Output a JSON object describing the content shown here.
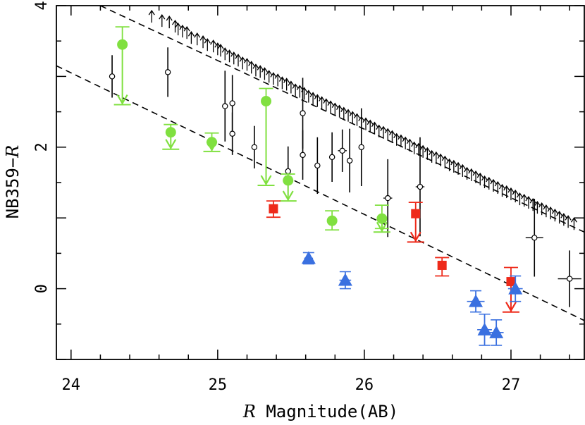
{
  "chart_data": {
    "type": "scatter",
    "title": "",
    "xlabel_italic": "R",
    "xlabel_rest": " Magnitude(AB)",
    "ylabel_prefix": "NB359−",
    "ylabel_italic": "R",
    "xlim": [
      23.9,
      27.5
    ],
    "ylim": [
      -1.0,
      4.0
    ],
    "xticks": [
      24,
      25,
      26,
      27
    ],
    "xtick_labels": [
      "24",
      "25",
      "26",
      "27"
    ],
    "yticks": [
      0,
      2,
      4
    ],
    "ytick_labels": [
      "0",
      "2",
      "4"
    ],
    "colors": {
      "black": "#000000",
      "green": "#80e040",
      "red": "#ee2a1a",
      "blue": "#3a70e0"
    },
    "limit_lines": [
      {
        "name": "upper-dashed-line",
        "x": [
          24.2,
          27.5
        ],
        "y": [
          4.0,
          0.8
        ]
      },
      {
        "name": "lower-dashed-line",
        "x": [
          23.9,
          27.5
        ],
        "y": [
          3.15,
          -0.45
        ]
      }
    ],
    "lower_limits": {
      "name": "lower limits (arrows)",
      "x": [
        24.55,
        24.62,
        24.67,
        24.71,
        24.73,
        24.76,
        24.79,
        24.82,
        24.86,
        24.9,
        24.93,
        24.97,
        25.0,
        25.02,
        25.05,
        25.08,
        25.11,
        25.14,
        25.17,
        25.2,
        25.23,
        25.26,
        25.29,
        25.32,
        25.35,
        25.38,
        25.41,
        25.44,
        25.47,
        25.5,
        25.53,
        25.56,
        25.59,
        25.62,
        25.65,
        25.68,
        25.71,
        25.74,
        25.77,
        25.8,
        25.83,
        25.86,
        25.89,
        25.92,
        25.95,
        25.98,
        26.01,
        26.04,
        26.07,
        26.1,
        26.13,
        26.16,
        26.19,
        26.22,
        26.25,
        26.28,
        26.31,
        26.34,
        26.37,
        26.4,
        26.43,
        26.46,
        26.49,
        26.52,
        26.55,
        26.58,
        26.61,
        26.64,
        26.67,
        26.7,
        26.73,
        26.76,
        26.79,
        26.82,
        26.85,
        26.88,
        26.91,
        26.94,
        26.97,
        27.0,
        27.03,
        27.06,
        27.09,
        27.12,
        27.15,
        27.18,
        27.21,
        27.24,
        27.27,
        27.3,
        27.33,
        27.36,
        27.39,
        27.43
      ],
      "y": [
        3.78,
        3.72,
        3.7,
        3.64,
        3.6,
        3.57,
        3.55,
        3.48,
        3.46,
        3.42,
        3.38,
        3.36,
        3.32,
        3.3,
        3.25,
        3.22,
        3.19,
        3.16,
        3.12,
        3.1,
        3.06,
        3.02,
        3.0,
        2.97,
        2.93,
        2.9,
        2.88,
        2.84,
        2.82,
        2.78,
        2.74,
        2.72,
        2.69,
        2.65,
        2.62,
        2.59,
        2.56,
        2.53,
        2.5,
        2.47,
        2.44,
        2.41,
        2.38,
        2.35,
        2.32,
        2.28,
        2.26,
        2.23,
        2.2,
        2.16,
        2.14,
        2.11,
        2.08,
        2.04,
        2.02,
        1.99,
        1.96,
        1.92,
        1.9,
        1.87,
        1.84,
        1.8,
        1.78,
        1.75,
        1.72,
        1.68,
        1.66,
        1.63,
        1.6,
        1.56,
        1.54,
        1.51,
        1.48,
        1.44,
        1.42,
        1.39,
        1.36,
        1.32,
        1.3,
        1.27,
        1.24,
        1.2,
        1.18,
        1.15,
        1.12,
        1.08,
        1.06,
        1.03,
        1.0,
        0.97,
        0.94,
        0.91,
        0.88,
        0.85
      ]
    },
    "black_points": {
      "name": "NB359 detections",
      "x": [
        24.28,
        24.66,
        25.05,
        25.1,
        25.1,
        25.25,
        25.48,
        25.58,
        25.58,
        25.68,
        25.78,
        25.85,
        25.9,
        25.98,
        26.16,
        26.38,
        27.16,
        27.4
      ],
      "y": [
        3.0,
        3.06,
        2.58,
        2.62,
        2.19,
        2.0,
        1.66,
        1.89,
        2.48,
        1.74,
        1.86,
        1.95,
        1.81,
        2.0,
        1.28,
        1.44,
        0.72,
        0.14
      ],
      "yerr": [
        0.3,
        0.35,
        0.5,
        0.4,
        0.3,
        0.3,
        0.35,
        0.35,
        0.5,
        0.4,
        0.35,
        0.3,
        0.45,
        0.55,
        0.55,
        0.7,
        0.55,
        0.4
      ],
      "xerr": [
        0.01,
        0.01,
        0.01,
        0.01,
        0.01,
        0.01,
        0.01,
        0.02,
        0.01,
        0.02,
        0.02,
        0.03,
        0.02,
        0.02,
        0.03,
        0.03,
        0.06,
        0.08
      ]
    },
    "green_points": {
      "name": "green circles",
      "x": [
        24.35,
        24.68,
        24.96,
        25.33,
        25.48,
        25.78,
        26.12
      ],
      "y": [
        3.45,
        2.21,
        2.07,
        2.65,
        1.53,
        0.96,
        0.99
      ],
      "limit_to": [
        2.6,
        1.97,
        1.94,
        1.46,
        1.24,
        null,
        0.8
      ],
      "err_top": [
        3.7,
        2.32,
        2.2,
        2.83,
        1.62,
        1.1,
        1.18
      ],
      "err_bottom": [
        null,
        null,
        null,
        null,
        null,
        0.83,
        0.85
      ]
    },
    "red_points": {
      "name": "red squares",
      "x": [
        25.38,
        26.35,
        26.53,
        27.0
      ],
      "y": [
        1.13,
        1.06,
        0.33,
        0.1
      ],
      "limit_to": [
        null,
        0.66,
        null,
        -0.33
      ],
      "err_top": [
        1.24,
        1.22,
        0.44,
        0.3
      ],
      "err_bottom": [
        1.01,
        null,
        0.18,
        null
      ]
    },
    "blue_points": {
      "name": "blue triangles",
      "x": [
        25.62,
        25.87,
        26.76,
        26.82,
        26.9,
        27.03
      ],
      "y": [
        0.43,
        0.12,
        -0.18,
        -0.58,
        -0.62,
        0.0
      ],
      "yerr": [
        0.08,
        0.12,
        0.15,
        0.22,
        0.18,
        0.18
      ],
      "xerr": [
        0.03,
        0.04,
        0.06,
        0.05,
        0.05,
        0.05
      ]
    }
  }
}
